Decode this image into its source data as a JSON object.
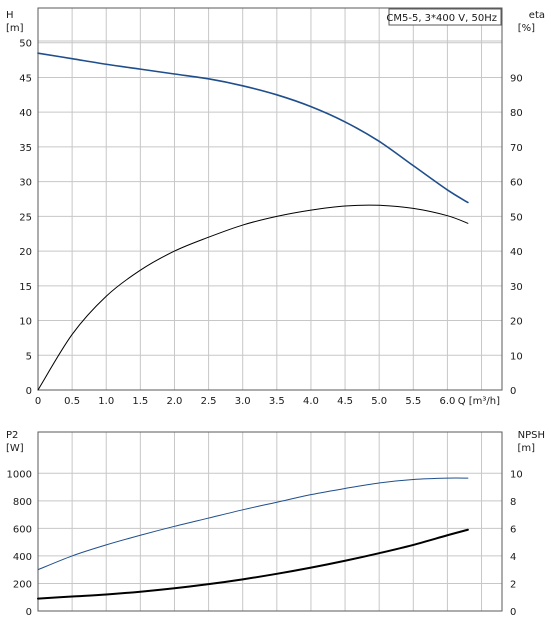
{
  "chart_data": [
    {
      "type": "line",
      "annotation": "CM5-5, 3*400 V, 50Hz",
      "xlabel": "Q [m³/h]",
      "xlim": [
        0,
        6.8
      ],
      "x_ticks": [
        "0",
        "0.5",
        "1.0",
        "1.5",
        "2.0",
        "2.5",
        "3.0",
        "3.5",
        "4.0",
        "4.5",
        "5.0",
        "5.5",
        "6.0"
      ],
      "y_left": {
        "label_line1": "H",
        "label_line2": "[m]",
        "ylim": [
          0,
          55
        ],
        "ticks": [
          "0",
          "5",
          "10",
          "15",
          "20",
          "25",
          "30",
          "35",
          "40",
          "45",
          "50"
        ]
      },
      "y_right": {
        "label_line1": "eta",
        "label_line2": "[%]",
        "ylim": [
          0,
          110
        ],
        "ticks": [
          "0",
          "10",
          "20",
          "30",
          "40",
          "50",
          "60",
          "70",
          "80",
          "90"
        ]
      },
      "grid": true,
      "series": [
        {
          "axis": "left",
          "color": "#1f4e8c",
          "x": [
            0,
            0.5,
            1.0,
            1.5,
            2.0,
            2.5,
            3.0,
            3.5,
            4.0,
            4.5,
            5.0,
            5.5,
            6.0,
            6.3
          ],
          "values": [
            48.5,
            47.7,
            46.9,
            46.2,
            45.5,
            44.8,
            43.8,
            42.5,
            40.8,
            38.6,
            35.8,
            32.3,
            28.8,
            27.0
          ]
        },
        {
          "axis": "right",
          "color": "#000000",
          "x": [
            0,
            0.5,
            1.0,
            1.5,
            2.0,
            2.5,
            3.0,
            3.5,
            4.0,
            4.5,
            5.0,
            5.5,
            6.0,
            6.3
          ],
          "values": [
            0,
            16,
            27,
            34.5,
            40,
            44,
            47.5,
            50,
            51.8,
            53,
            53.2,
            52.3,
            50.2,
            48
          ]
        }
      ]
    },
    {
      "type": "line",
      "xlim": [
        0,
        6.8
      ],
      "y_left": {
        "label_line1": "P2",
        "label_line2": "[W]",
        "ylim": [
          0,
          1300
        ],
        "ticks": [
          "0",
          "200",
          "400",
          "600",
          "800",
          "1000"
        ]
      },
      "y_right": {
        "label_line1": "NPSH",
        "label_line2": "[m]",
        "ylim": [
          0,
          13
        ],
        "ticks": [
          "0",
          "2",
          "4",
          "6",
          "8",
          "10"
        ]
      },
      "grid": true,
      "series": [
        {
          "axis": "left",
          "color": "#1f4e8c",
          "x": [
            0,
            0.5,
            1.0,
            1.5,
            2.0,
            2.5,
            3.0,
            3.5,
            4.0,
            4.5,
            5.0,
            5.5,
            6.0,
            6.3
          ],
          "values": [
            300,
            400,
            480,
            550,
            615,
            675,
            735,
            790,
            845,
            890,
            930,
            955,
            965,
            965
          ]
        },
        {
          "axis": "right",
          "color": "#000000",
          "x": [
            0,
            0.5,
            1.0,
            1.5,
            2.0,
            2.5,
            3.0,
            3.5,
            4.0,
            4.5,
            5.0,
            5.5,
            6.0,
            6.3
          ],
          "values": [
            0.9,
            1.05,
            1.2,
            1.4,
            1.65,
            1.95,
            2.3,
            2.7,
            3.15,
            3.65,
            4.2,
            4.8,
            5.5,
            5.9
          ]
        }
      ]
    }
  ]
}
